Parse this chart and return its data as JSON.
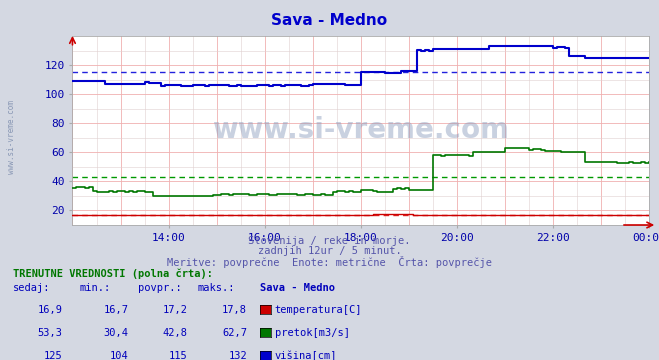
{
  "title": "Sava - Medno",
  "subtitle1": "Slovenija / reke in morje.",
  "subtitle2": "zadnjih 12ur / 5 minut.",
  "subtitle3": "Meritve: povprečne  Enote: metrične  Črta: povprečje",
  "xlabel_ticks": [
    "14:00",
    "16:00",
    "18:00",
    "20:00",
    "22:00",
    "00:00"
  ],
  "xlabel_tick_positions": [
    24,
    48,
    72,
    96,
    120,
    144
  ],
  "ylim": [
    10,
    140
  ],
  "yticks": [
    20,
    40,
    60,
    80,
    100,
    120
  ],
  "bg_color": "#d4d8e2",
  "plot_bg": "#ffffff",
  "grid_color": "#f0b0b0",
  "grid_minor_color": "#e0d0d0",
  "title_color": "#0000cc",
  "subtitle_color": "#5555aa",
  "label_color": "#0000aa",
  "table_header_color": "#007700",
  "table_val_color": "#0000bb",
  "temperature_color": "#cc0000",
  "pretok_color": "#007700",
  "visina_color": "#0000cc",
  "avg_temp_color": "#dd2222",
  "avg_pretok_color": "#009900",
  "avg_visina_color": "#2222dd",
  "temperature_avg": 17.2,
  "pretok_avg": 42.8,
  "visina_avg": 115.0,
  "n_points": 145,
  "watermark": "www.si-vreme.com",
  "stats_headers": [
    "sedaj:",
    "min.:",
    "povpr.:",
    "maks.:",
    "Sava - Medno"
  ],
  "stats_rows": [
    {
      "vals": [
        "16,9",
        "16,7",
        "17,2",
        "17,8"
      ],
      "color": "#cc0000",
      "label": "temperatura[C]"
    },
    {
      "vals": [
        "53,3",
        "30,4",
        "42,8",
        "62,7"
      ],
      "color": "#007700",
      "label": "pretok[m3/s]"
    },
    {
      "vals": [
        "125",
        "104",
        "115",
        "132"
      ],
      "color": "#0000cc",
      "label": "višina[cm]"
    }
  ],
  "label_header": "TRENUTNE VREDNOSTI (polna črta):"
}
